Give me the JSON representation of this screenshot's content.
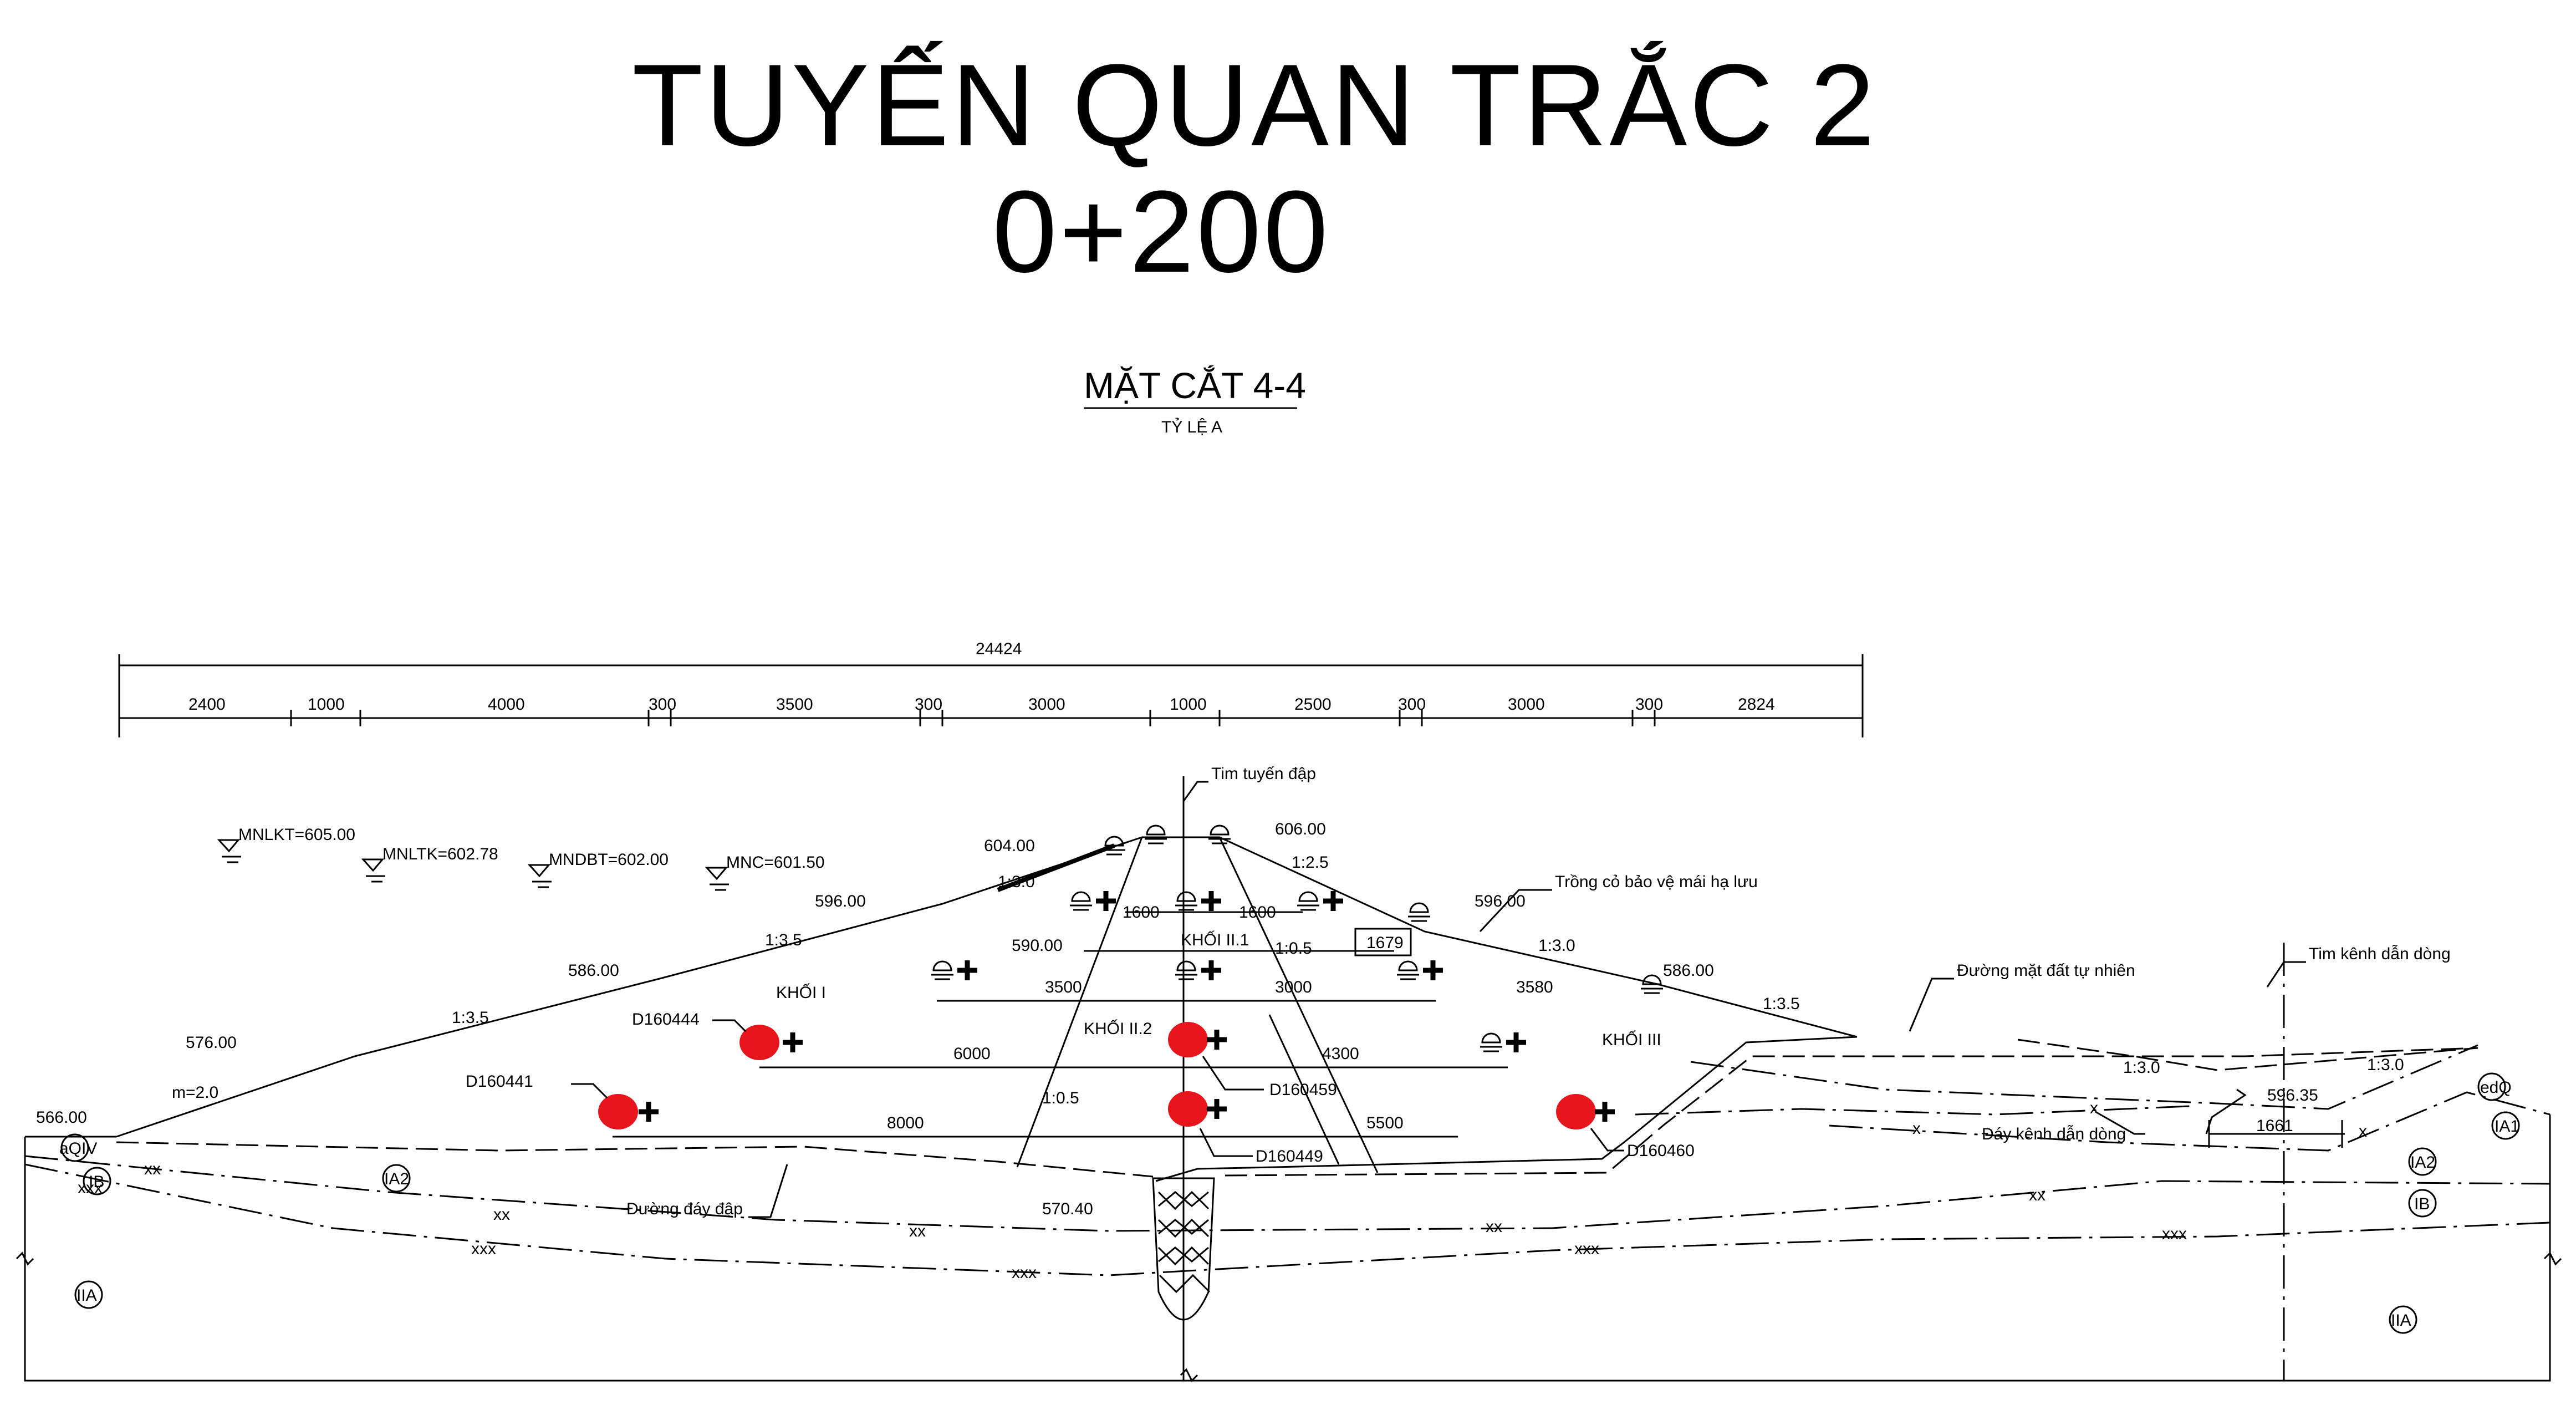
{
  "title": {
    "line1": "TUYẾN QUAN TRẮC 2",
    "line2": "0+200"
  },
  "section": {
    "name": "MẶT CẮT 4-4",
    "scale": "TỶ LỆ A"
  },
  "dimensions": {
    "total": "24424",
    "segments": [
      "2400",
      "1000",
      "4000",
      "300",
      "3500",
      "300",
      "3000",
      "1000",
      "2500",
      "300",
      "3000",
      "300",
      "2824"
    ]
  },
  "water_levels": [
    "MNLKT=605.00",
    "MNLTK=602.78",
    "MNDBT=602.00",
    "MNC=601.50"
  ],
  "elevations": [
    "604.00",
    "606.00",
    "596.00",
    "596.00",
    "590.00",
    "586.00",
    "586.00",
    "576.00",
    "566.00",
    "570.40",
    "596.35"
  ],
  "slopes": [
    "1:3.0",
    "1:3.5",
    "1:3.5",
    "m=2.0",
    "1:2.5",
    "1:3.0",
    "1:3.5",
    "1:0.5",
    "1:0.5",
    "1:3.0",
    "1:3.0"
  ],
  "inner_dims": [
    "1600",
    "1600",
    "1679",
    "3500",
    "3000",
    "3580",
    "6000",
    "4300",
    "8000",
    "5500",
    "1661"
  ],
  "zones": [
    "KHỐI I",
    "KHỐI II.1",
    "KHỐI II.2",
    "KHỐI III"
  ],
  "instruments": [
    "D160444",
    "D160441",
    "D160459",
    "D160449",
    "D160460"
  ],
  "callouts": {
    "axis": "Tim tuyến đập",
    "grass": "Trồng cỏ bảo vệ mái hạ lưu",
    "ground": "Đường mặt đất tự nhiên",
    "channel_axis": "Tim kênh dẫn dòng",
    "channel_bottom": "Đáy kênh dẫn dòng",
    "dam_bottom": "Đường đáy đập"
  },
  "geo_layers": [
    "aQIV",
    "IB",
    "IA2",
    "IIA",
    "edQ",
    "IA1",
    "IA2",
    "IB",
    "IIA"
  ],
  "markers": {
    "x": "x",
    "xx": "xx",
    "xxx": "xxx"
  },
  "colors": {
    "instrument": "#e8161c",
    "line": "#000000"
  }
}
